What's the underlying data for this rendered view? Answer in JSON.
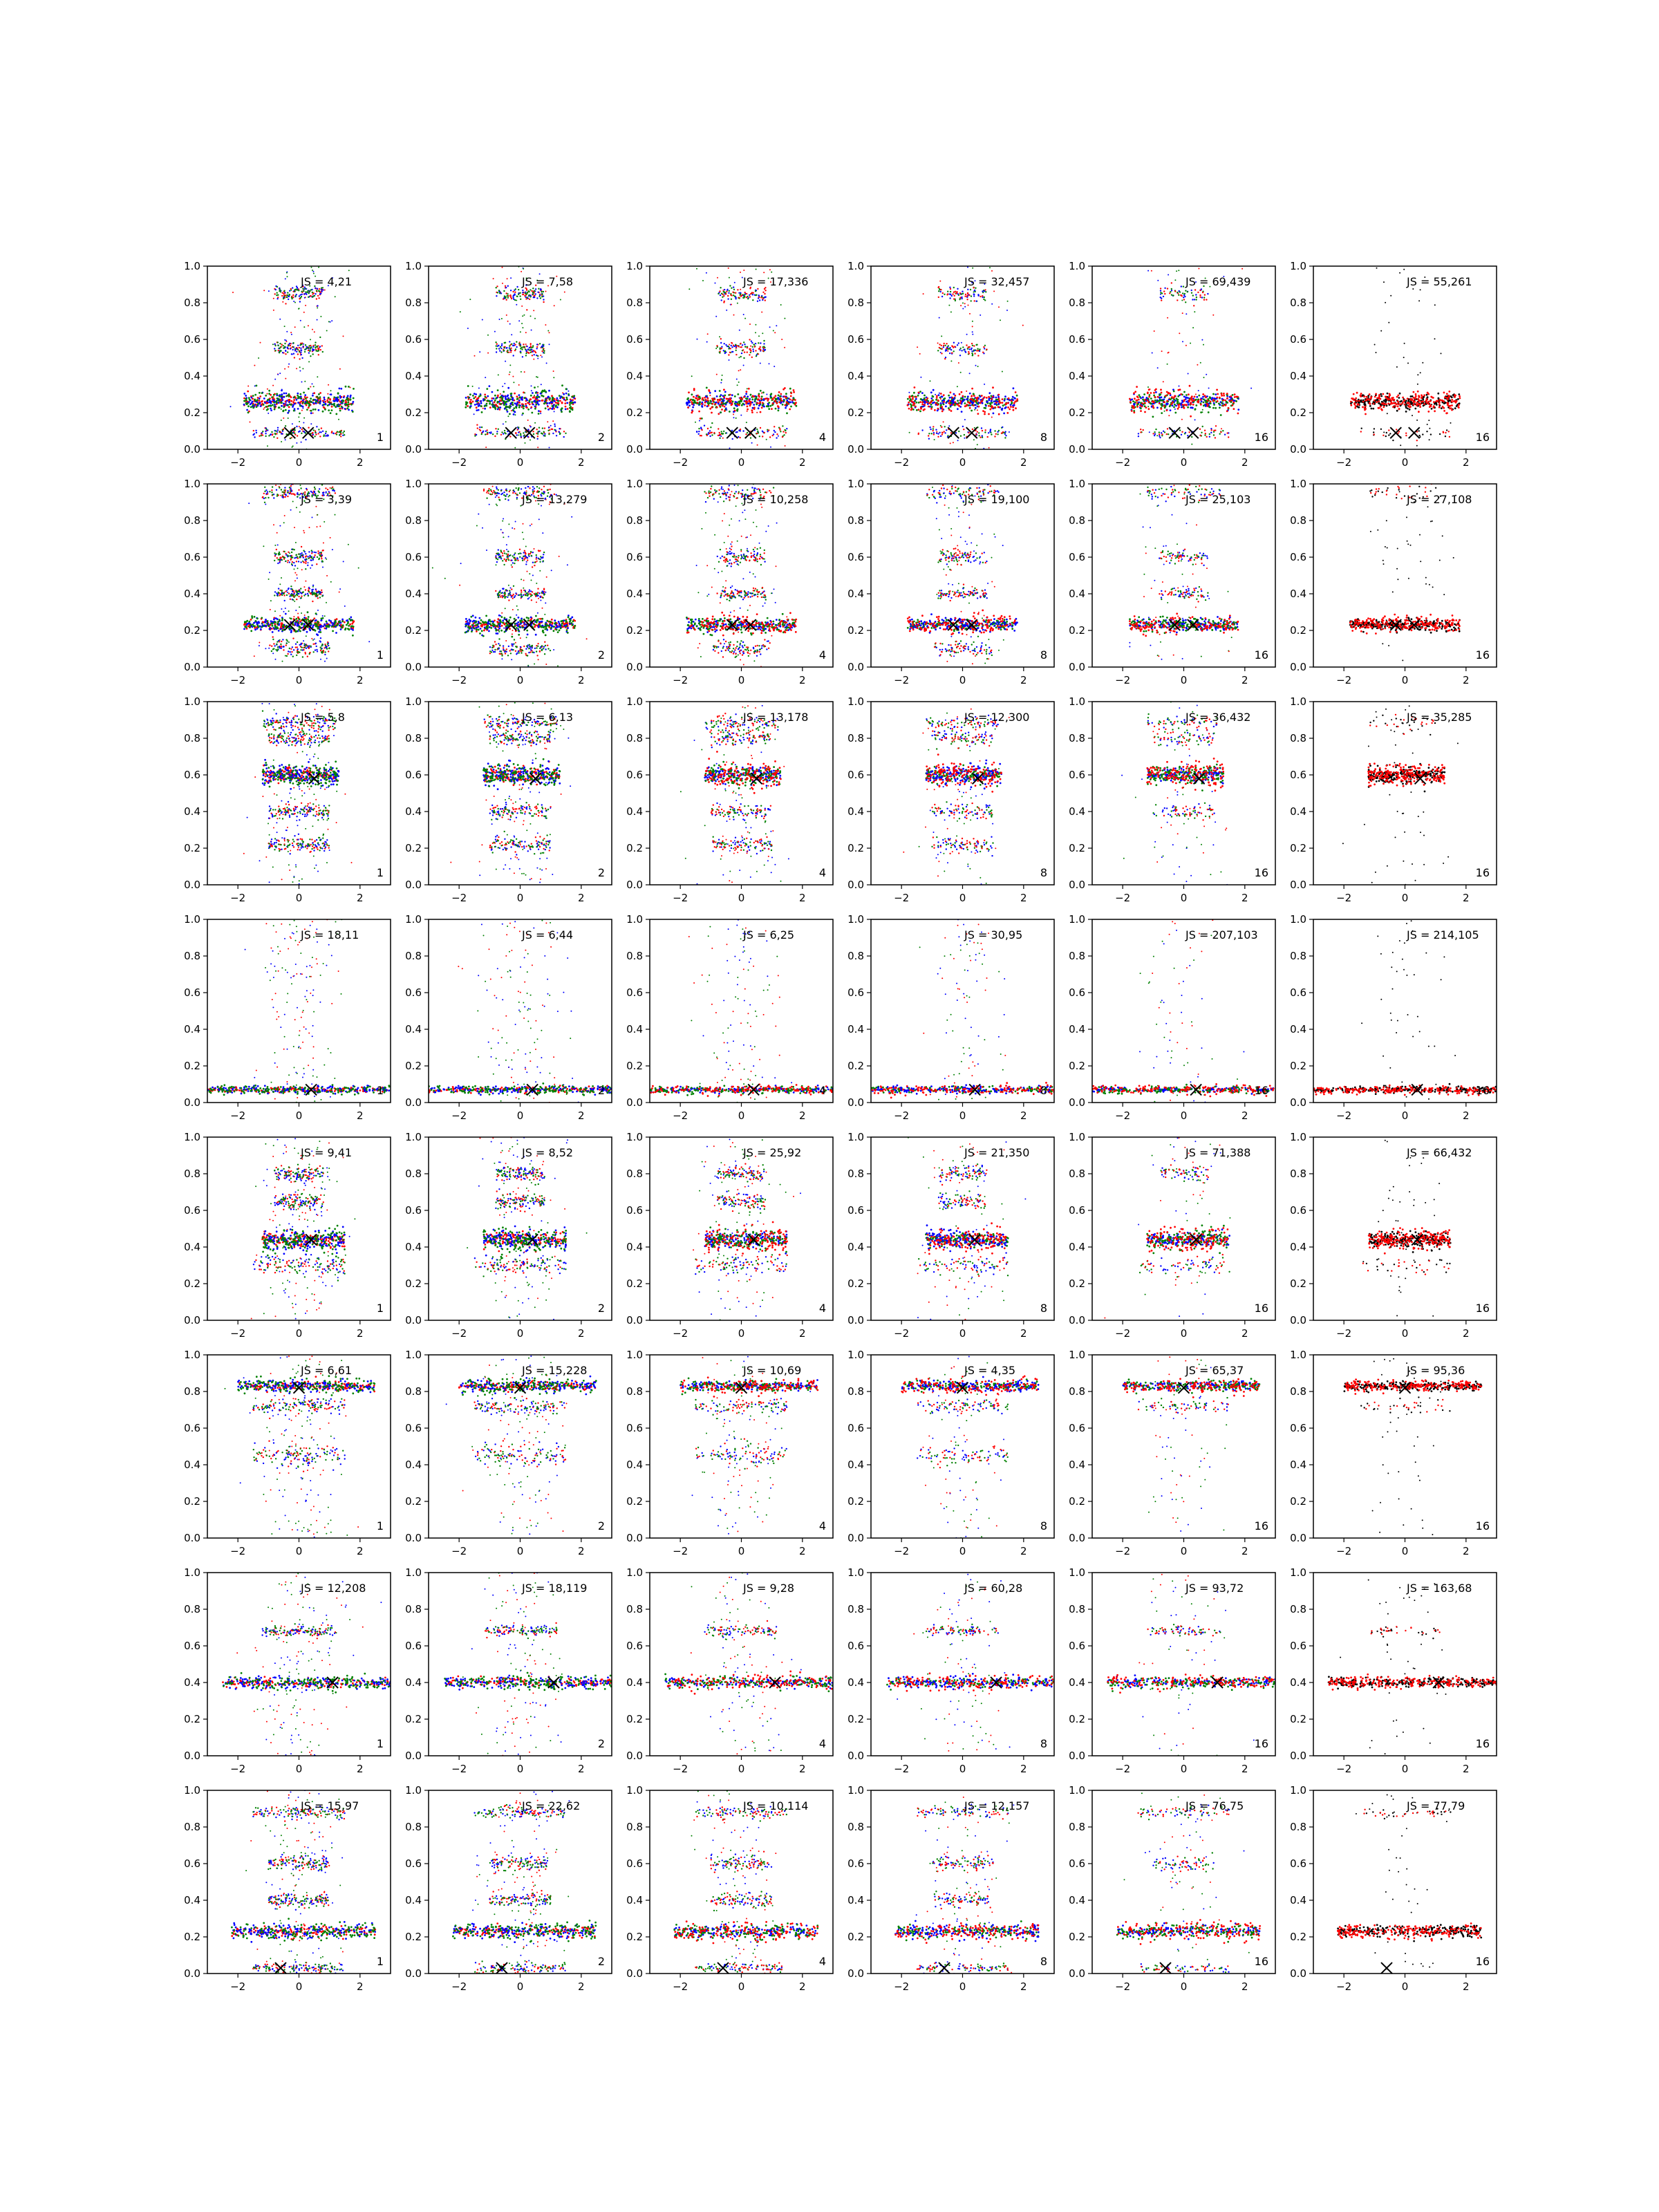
{
  "figure": {
    "rows": 8,
    "cols": 6,
    "xlim": [
      -3,
      3
    ],
    "ylim": [
      0,
      1
    ],
    "xticks": [
      -2,
      0,
      2
    ],
    "xtick_labels": [
      "−2",
      "0",
      "2"
    ],
    "yticks": [
      0,
      0.2,
      0.4,
      0.6,
      0.8,
      1.0
    ],
    "ytick_labels": [
      "0.0",
      "0.2",
      "0.4",
      "0.6",
      "0.8",
      "1.0"
    ],
    "grid": false,
    "colors": {
      "blue": "#0000ff",
      "green": "#008000",
      "red": "#ff0000",
      "black": "#000000",
      "axis": "#000000"
    },
    "marker": "x"
  },
  "chart_data": {
    "type": "scatter",
    "panel_labels": [
      [
        "JS = 4,21",
        "JS = 7,58",
        "JS = 17,336",
        "JS = 32,457",
        "JS = 69,439",
        "JS = 55,261"
      ],
      [
        "JS = 3,39",
        "JS = 13,279",
        "JS = 10,258",
        "JS = 19,100",
        "JS = 25,103",
        "JS = 27,108"
      ],
      [
        "JS = 5,8",
        "JS = 6,13",
        "JS = 13,178",
        "JS = 12,300",
        "JS = 36,432",
        "JS = 35,285"
      ],
      [
        "JS = 18,11",
        "JS = 6,44",
        "JS = 6,25",
        "JS = 30,95",
        "JS = 207,103",
        "JS = 214,105"
      ],
      [
        "JS = 9,41",
        "JS = 8,52",
        "JS = 25,92",
        "JS = 21,350",
        "JS = 71,388",
        "JS = 66,432"
      ],
      [
        "JS = 6,61",
        "JS = 15,228",
        "JS = 10,69",
        "JS = 4,35",
        "JS = 65,37",
        "JS = 95,36"
      ],
      [
        "JS = 12,208",
        "JS = 18,119",
        "JS = 9,28",
        "JS = 60,28",
        "JS = 93,72",
        "JS = 163,68"
      ],
      [
        "JS = 15,97",
        "JS = 22,62",
        "JS = 10,114",
        "JS = 12,157",
        "JS = 76,75",
        "JS = 77,79"
      ]
    ],
    "corner_labels": [
      "1",
      "2",
      "4",
      "8",
      "16",
      "16"
    ],
    "row_markers": [
      [
        [
          -0.3,
          0.09
        ],
        [
          0.3,
          0.09
        ]
      ],
      [
        [
          -0.3,
          0.23
        ],
        [
          0.3,
          0.23
        ]
      ],
      [
        [
          0.5,
          0.58
        ]
      ],
      [
        [
          0.4,
          0.07
        ]
      ],
      [
        [
          0.4,
          0.44
        ]
      ],
      [
        [
          0.0,
          0.82
        ]
      ],
      [
        [
          1.1,
          0.4
        ]
      ],
      [
        [
          -0.6,
          0.03
        ]
      ]
    ],
    "row_bands": [
      [
        {
          "y": 0.26,
          "x0": -1.8,
          "x1": 1.8,
          "spread": 0.02
        },
        {
          "y": 0.09,
          "x0": -1.5,
          "x1": 1.5,
          "spread": 0.015
        },
        {
          "y": 0.85,
          "x0": -0.8,
          "x1": 0.8,
          "spread": 0.02
        },
        {
          "y": 0.55,
          "x0": -0.8,
          "x1": 0.8,
          "spread": 0.02
        }
      ],
      [
        {
          "y": 0.23,
          "x0": -1.8,
          "x1": 1.8,
          "spread": 0.015
        },
        {
          "y": 0.95,
          "x0": -1.2,
          "x1": 1.2,
          "spread": 0.02
        },
        {
          "y": 0.6,
          "x0": -0.8,
          "x1": 0.8,
          "spread": 0.02
        },
        {
          "y": 0.4,
          "x0": -0.8,
          "x1": 0.8,
          "spread": 0.015
        },
        {
          "y": 0.1,
          "x0": -1.0,
          "x1": 1.0,
          "spread": 0.02
        }
      ],
      [
        {
          "y": 0.6,
          "x0": -1.2,
          "x1": 1.3,
          "spread": 0.02
        },
        {
          "y": 0.88,
          "x0": -1.2,
          "x1": 1.2,
          "spread": 0.02
        },
        {
          "y": 0.8,
          "x0": -1.0,
          "x1": 1.0,
          "spread": 0.02
        },
        {
          "y": 0.4,
          "x0": -1.0,
          "x1": 1.0,
          "spread": 0.02
        },
        {
          "y": 0.22,
          "x0": -1.0,
          "x1": 1.0,
          "spread": 0.02
        }
      ],
      [
        {
          "y": 0.07,
          "x0": -3.0,
          "x1": 3.0,
          "spread": 0.008
        }
      ],
      [
        {
          "y": 0.44,
          "x0": -1.2,
          "x1": 1.5,
          "spread": 0.02
        },
        {
          "y": 0.3,
          "x0": -1.5,
          "x1": 1.5,
          "spread": 0.025
        },
        {
          "y": 0.8,
          "x0": -0.8,
          "x1": 0.8,
          "spread": 0.02
        },
        {
          "y": 0.65,
          "x0": -0.8,
          "x1": 0.8,
          "spread": 0.02
        }
      ],
      [
        {
          "y": 0.83,
          "x0": -2.0,
          "x1": 2.5,
          "spread": 0.012
        },
        {
          "y": 0.72,
          "x0": -1.5,
          "x1": 1.5,
          "spread": 0.02
        },
        {
          "y": 0.45,
          "x0": -1.5,
          "x1": 1.5,
          "spread": 0.03
        }
      ],
      [
        {
          "y": 0.4,
          "x0": -2.5,
          "x1": 3.0,
          "spread": 0.012
        },
        {
          "y": 0.68,
          "x0": -1.2,
          "x1": 1.2,
          "spread": 0.015
        }
      ],
      [
        {
          "y": 0.23,
          "x0": -2.2,
          "x1": 2.5,
          "spread": 0.015
        },
        {
          "y": 0.88,
          "x0": -1.5,
          "x1": 1.5,
          "spread": 0.015
        },
        {
          "y": 0.03,
          "x0": -1.5,
          "x1": 1.5,
          "spread": 0.012
        },
        {
          "y": 0.6,
          "x0": -1.0,
          "x1": 1.0,
          "spread": 0.02
        },
        {
          "y": 0.4,
          "x0": -1.0,
          "x1": 1.0,
          "spread": 0.02
        }
      ]
    ],
    "col_series": [
      [
        "red",
        "blue",
        "green"
      ],
      [
        "red",
        "blue",
        "green"
      ],
      [
        "blue",
        "green",
        "red"
      ],
      [
        "green",
        "blue",
        "red"
      ],
      [
        "blue",
        "green",
        "red"
      ],
      [
        "black",
        "red"
      ]
    ]
  }
}
